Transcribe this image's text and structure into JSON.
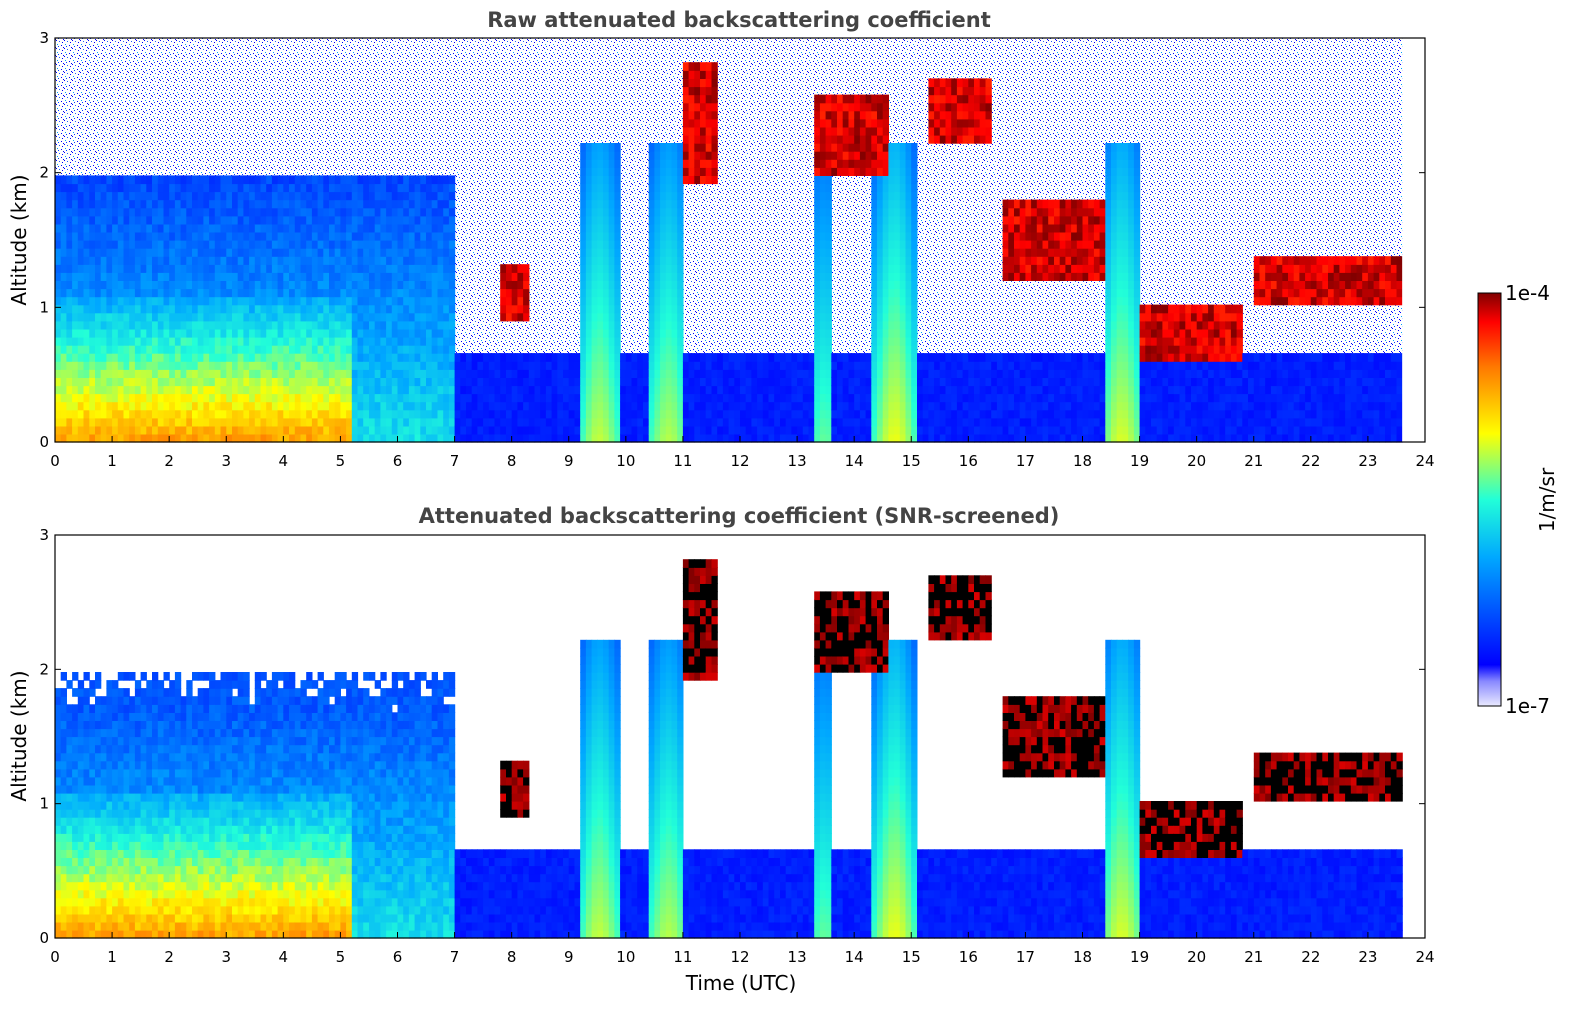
{
  "chart_data": [
    {
      "type": "heatmap",
      "title": "Raw attenuated backscattering coefficient",
      "xlabel": "",
      "ylabel": "Altitude (km)",
      "xlim": [
        0,
        24
      ],
      "ylim": [
        0,
        3
      ],
      "xticks": [
        0,
        1,
        2,
        3,
        4,
        5,
        6,
        7,
        8,
        9,
        10,
        11,
        12,
        13,
        14,
        15,
        16,
        17,
        18,
        19,
        20,
        21,
        22,
        23,
        24
      ],
      "yticks": [
        0,
        1,
        2,
        3
      ],
      "data_end_time": 23.6,
      "screened": false,
      "features": [
        {
          "kind": "boundary_layer",
          "t0": 0.0,
          "t1": 5.2,
          "top": 1.1,
          "level": 0.78
        },
        {
          "kind": "aerosol",
          "t0": 0.0,
          "t1": 7.0,
          "top": 2.0,
          "level": 0.45
        },
        {
          "kind": "cloud",
          "t0": 7.8,
          "t1": 8.3,
          "bottom": 0.9,
          "top": 1.3,
          "level": 1.0
        },
        {
          "kind": "cloud",
          "t0": 11.0,
          "t1": 11.6,
          "bottom": 1.9,
          "top": 2.8,
          "level": 1.0
        },
        {
          "kind": "cloud",
          "t0": 13.3,
          "t1": 14.6,
          "bottom": 2.0,
          "top": 2.6,
          "level": 1.0
        },
        {
          "kind": "cloud",
          "t0": 15.3,
          "t1": 16.4,
          "bottom": 2.2,
          "top": 2.7,
          "level": 1.0
        },
        {
          "kind": "cloud",
          "t0": 16.6,
          "t1": 18.4,
          "bottom": 1.2,
          "top": 1.8,
          "level": 1.0
        },
        {
          "kind": "cloud",
          "t0": 19.0,
          "t1": 20.8,
          "bottom": 0.6,
          "top": 1.0,
          "level": 1.0
        },
        {
          "kind": "cloud",
          "t0": 21.0,
          "t1": 23.6,
          "bottom": 1.0,
          "top": 1.4,
          "level": 1.0
        }
      ]
    },
    {
      "type": "heatmap",
      "title": "Attenuated backscattering coefficient (SNR-screened)",
      "xlabel": "Time (UTC)",
      "ylabel": "Altitude (km)",
      "xlim": [
        0,
        24
      ],
      "ylim": [
        0,
        3
      ],
      "xticks": [
        0,
        1,
        2,
        3,
        4,
        5,
        6,
        7,
        8,
        9,
        10,
        11,
        12,
        13,
        14,
        15,
        16,
        17,
        18,
        19,
        20,
        21,
        22,
        23,
        24
      ],
      "yticks": [
        0,
        1,
        2,
        3
      ],
      "data_end_time": 23.6,
      "screened": true
    }
  ],
  "colorbar": {
    "label": "1/m/sr",
    "max_label": "1e-4",
    "min_label": "1e-7",
    "colormap": "jet",
    "colors": [
      "#e8e8f8",
      "#0000ff",
      "#00a0ff",
      "#00ffd0",
      "#ffff00",
      "#ff8000",
      "#ff0000",
      "#800000"
    ]
  }
}
